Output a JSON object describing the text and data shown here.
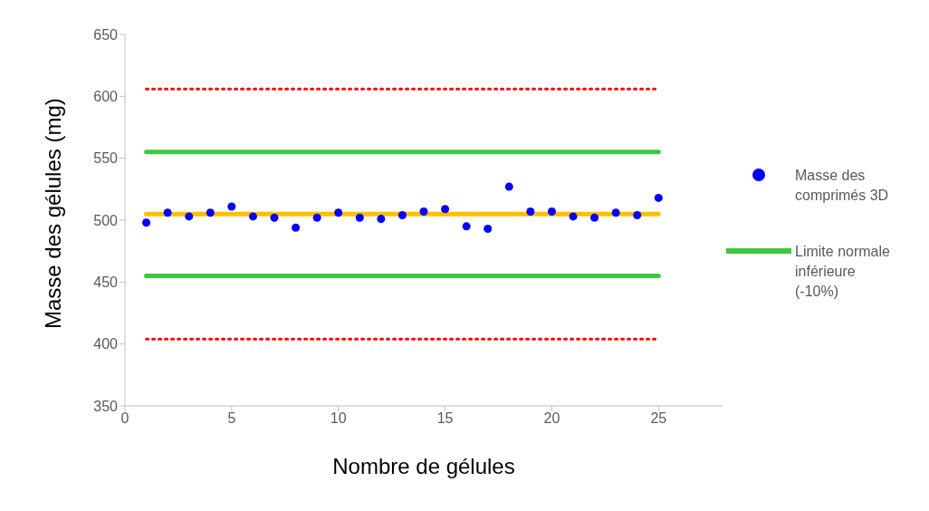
{
  "chart_data": {
    "type": "scatter",
    "xlabel": "Nombre de gélules",
    "ylabel": "Masse des gélules (mg)",
    "xlim": [
      0,
      28
    ],
    "xticks": [
      0,
      5,
      10,
      15,
      20,
      25
    ],
    "ylim": [
      350,
      650
    ],
    "yticks": [
      350,
      400,
      450,
      500,
      550,
      600,
      650
    ],
    "grid": false,
    "legend": "right",
    "series": [
      {
        "type": "line",
        "color": "#ff0000",
        "line_style": "dotted",
        "marker": "none",
        "x": [
          1,
          25
        ],
        "values": [
          606,
          606
        ]
      },
      {
        "type": "line",
        "color": "#3cc83c",
        "line_style": "solid",
        "marker": "none",
        "x": [
          1,
          25
        ],
        "values": [
          555,
          555
        ]
      },
      {
        "type": "line",
        "color": "#ffc000",
        "line_style": "solid",
        "marker": "none",
        "x": [
          1,
          25
        ],
        "values": [
          505,
          505
        ]
      },
      {
        "type": "line",
        "name": "Limite normale inférieure (-10%)",
        "color": "#3cc83c",
        "line_style": "solid",
        "marker": "none",
        "x": [
          1,
          25
        ],
        "values": [
          455,
          455
        ]
      },
      {
        "type": "line",
        "color": "#ff0000",
        "line_style": "dotted",
        "marker": "none",
        "x": [
          1,
          25
        ],
        "values": [
          404,
          404
        ]
      },
      {
        "name": "Masse des comprimés 3D",
        "color": "#0000ff",
        "marker": "circle",
        "x": [
          1,
          2,
          3,
          4,
          5,
          6,
          7,
          8,
          9,
          10,
          11,
          12,
          13,
          14,
          15,
          16,
          17,
          18,
          19,
          20,
          21,
          22,
          23,
          24,
          25
        ],
        "values": [
          498,
          506,
          503,
          506,
          511,
          503,
          502,
          494,
          502,
          506,
          502,
          501,
          504,
          507,
          509,
          495,
          493,
          527,
          507,
          507,
          503,
          502,
          506,
          504,
          518
        ]
      }
    ]
  }
}
